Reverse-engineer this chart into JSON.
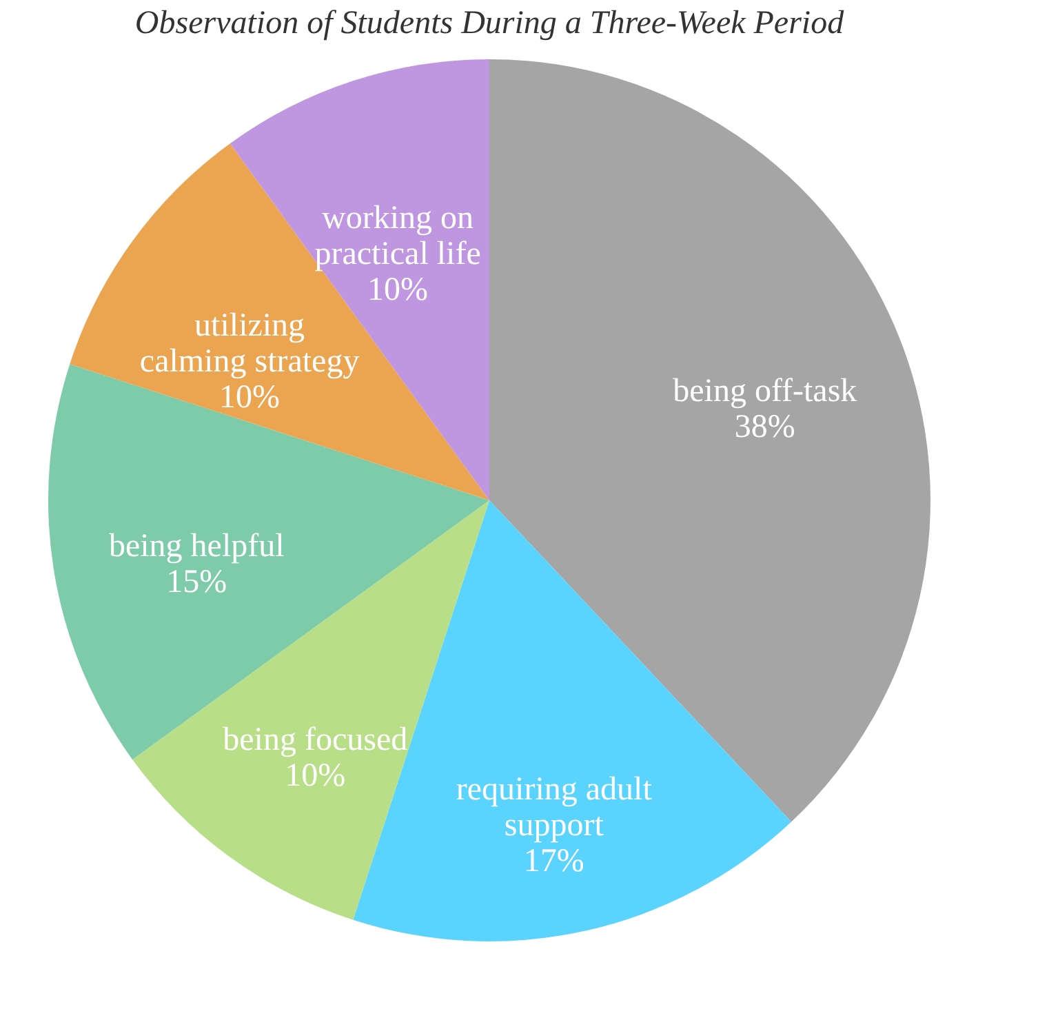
{
  "chart_data": {
    "type": "pie",
    "title": "Observation of Students During a Three-Week Period",
    "categories": [
      "being off-task",
      "requiring adult support",
      "being focused",
      "being helpful",
      "utilizing calming strategy",
      "working on practical life"
    ],
    "values": [
      38,
      17,
      10,
      15,
      10,
      10
    ],
    "value_labels": [
      "38%",
      "17%",
      "10%",
      "15%",
      "10%",
      "10%"
    ],
    "colors": [
      "#a5a5a5",
      "#5bd3ff",
      "#b8df87",
      "#7ecba9",
      "#eba450",
      "#bf96e0"
    ],
    "legend": false
  }
}
